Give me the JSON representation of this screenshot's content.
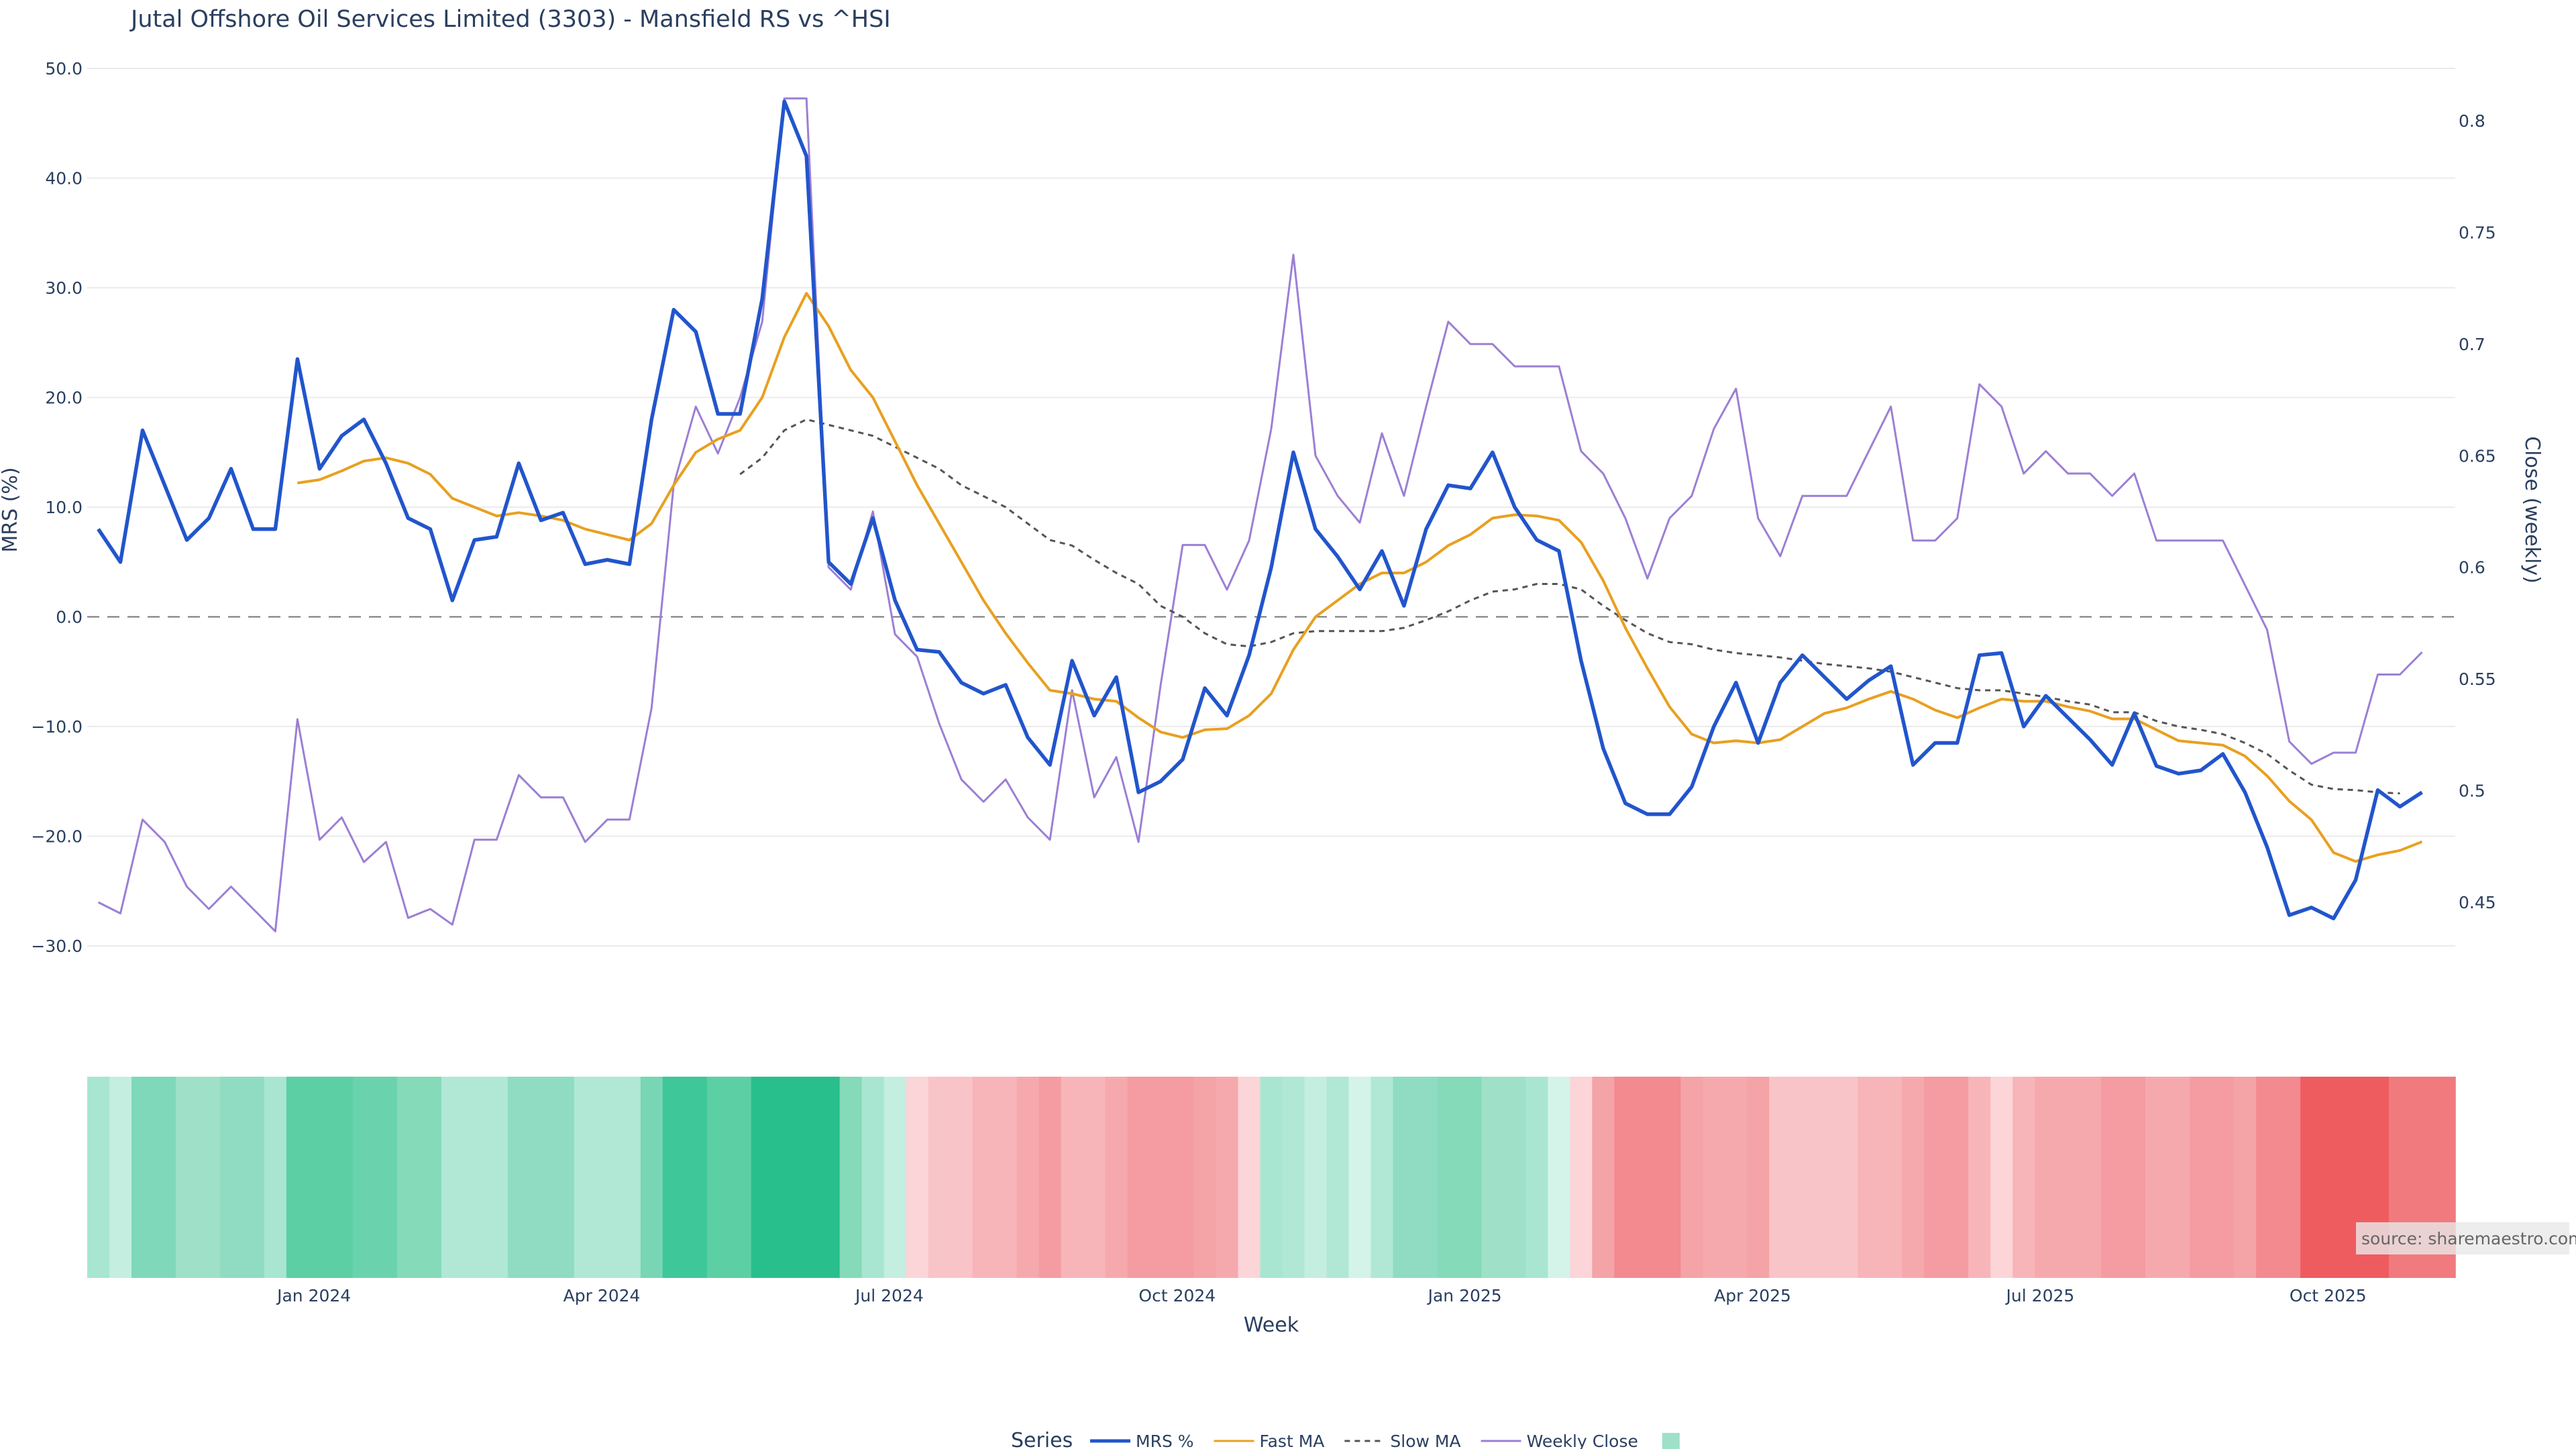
{
  "chart_data": {
    "type": "line",
    "title": "Jutal Offshore Oil Services Limited (3303) - Mansfield RS vs ^HSI",
    "xlabel": "Week",
    "ylabel": "MRS (%)",
    "y2label": "Close (weekly)",
    "ylim": [
      -30,
      50
    ],
    "y2lim": [
      0.43,
      0.82
    ],
    "yticks": [
      "50.0",
      "40.0",
      "30.0",
      "20.0",
      "10.0",
      "0.0",
      "−10.0",
      "−20.0",
      "−30.0"
    ],
    "yticks_values": [
      50,
      40,
      30,
      20,
      10,
      0,
      -10,
      -20,
      -30
    ],
    "y2ticks": [
      "0.8",
      "0.75",
      "0.7",
      "0.65",
      "0.6",
      "0.55",
      "0.5",
      "0.45"
    ],
    "y2ticks_values": [
      0.8,
      0.75,
      0.7,
      0.65,
      0.6,
      0.55,
      0.5,
      0.45
    ],
    "xticks": [
      "Jan 2024",
      "Apr 2024",
      "Jul 2024",
      "Oct 2024",
      "Jan 2025",
      "Apr 2025",
      "Jul 2025",
      "Oct 2025"
    ],
    "xticks_weeks": [
      9.75,
      22.75,
      35.75,
      48.75,
      61.75,
      74.75,
      87.75,
      100.75
    ],
    "x_count": 107,
    "grid": true,
    "legend_position": "bottom",
    "legend_title": "Series",
    "source": "source: sharemaestro.com",
    "series": [
      {
        "name": "MRS %",
        "color": "#2255cc",
        "values": [
          8,
          5,
          17,
          12,
          7,
          9,
          13.5,
          8,
          8,
          23.5,
          13.5,
          16.5,
          18,
          14,
          9,
          8,
          1.5,
          7,
          7.3,
          14,
          8.8,
          9.5,
          4.8,
          5.2,
          4.8,
          18,
          28,
          26,
          18.5,
          18.5,
          29,
          47,
          42,
          5,
          3,
          9,
          1.5,
          -3,
          -3.2,
          -6,
          -7,
          -6.2,
          -11,
          -13.5,
          -4,
          -9,
          -5.5,
          -16,
          -15,
          -13,
          -6.5,
          -9,
          -3.5,
          4.5,
          15,
          8,
          5.5,
          2.5,
          6,
          1,
          8,
          12,
          11.7,
          15,
          10,
          7,
          6,
          -4,
          -12,
          -17,
          -18,
          -18,
          -15.5,
          -10,
          -6,
          -11.5,
          -6,
          -3.5,
          -5.5,
          -7.5,
          -5.8,
          -4.5,
          -13.5,
          -11.5,
          -11.5,
          -3.5,
          -3.3,
          -10,
          -7.2,
          -9.2,
          -11.2,
          -13.5,
          -8.8,
          -13.6,
          -14.3,
          -14,
          -12.5,
          -16,
          -21,
          -27.2,
          -26.5,
          -27.5,
          -24,
          -15.8,
          -17.3,
          -16
        ]
      },
      {
        "name": "Fast MA",
        "color": "#e8a020",
        "values": [
          null,
          null,
          null,
          null,
          null,
          null,
          null,
          null,
          null,
          12.2,
          12.5,
          13.3,
          14.2,
          14.5,
          14,
          13,
          10.8,
          10,
          9.2,
          9.5,
          9.2,
          8.8,
          8,
          7.5,
          7,
          8.5,
          12,
          15,
          16.2,
          17,
          20,
          25.5,
          29.5,
          26.5,
          22.5,
          20,
          16,
          12,
          8.5,
          5,
          1.5,
          -1.5,
          -4.2,
          -6.7,
          -7,
          -7.5,
          -7.7,
          -9.2,
          -10.5,
          -11,
          -10.3,
          -10.2,
          -9,
          -7,
          -3,
          0,
          1.5,
          3,
          4,
          4,
          5,
          6.5,
          7.5,
          9,
          9.3,
          9.2,
          8.8,
          6.8,
          3.3,
          -1,
          -4.7,
          -8.2,
          -10.7,
          -11.5,
          -11.3,
          -11.5,
          -11.2,
          -10,
          -8.8,
          -8.3,
          -7.5,
          -6.8,
          -7.5,
          -8.5,
          -9.2,
          -8.3,
          -7.5,
          -7.7,
          -7.7,
          -8.2,
          -8.6,
          -9.3,
          -9.3,
          -10.3,
          -11.3,
          -11.5,
          -11.7,
          -12.7,
          -14.5,
          -16.8,
          -18.5,
          -21.5,
          -22.3,
          -21.7,
          -21.3,
          -20.5,
          null
        ]
      },
      {
        "name": "Slow MA",
        "color": "#555555",
        "dash": true,
        "values": [
          null,
          null,
          null,
          null,
          null,
          null,
          null,
          null,
          null,
          null,
          null,
          null,
          null,
          null,
          null,
          null,
          null,
          null,
          null,
          null,
          null,
          null,
          null,
          null,
          null,
          null,
          null,
          null,
          null,
          13,
          14.5,
          17,
          18,
          17.5,
          17,
          16.5,
          15.5,
          14.5,
          13.5,
          12,
          11,
          10,
          8.5,
          7,
          6.5,
          5.2,
          4,
          3,
          1,
          0,
          -1.5,
          -2.5,
          -2.7,
          -2.3,
          -1.5,
          -1.3,
          -1.3,
          -1.3,
          -1.3,
          -1,
          -0.3,
          0.5,
          1.5,
          2.3,
          2.5,
          3,
          3,
          2.5,
          1,
          -0.3,
          -1.5,
          -2.3,
          -2.5,
          -3,
          -3.3,
          -3.5,
          -3.7,
          -4,
          -4.3,
          -4.5,
          -4.7,
          -5,
          -5.5,
          -6,
          -6.5,
          -6.7,
          -6.7,
          -7,
          -7.3,
          -7.7,
          -8,
          -8.7,
          -8.7,
          -9.5,
          -10,
          -10.3,
          -10.7,
          -11.5,
          -12.5,
          -14,
          -15.3,
          -15.7,
          -15.8,
          -16,
          -16.1,
          null,
          null
        ]
      },
      {
        "name": "Weekly Close",
        "color": "#9c7fd4",
        "axis": "y2",
        "values": [
          0.45,
          0.445,
          0.487,
          0.477,
          0.457,
          0.447,
          0.457,
          0.447,
          0.437,
          0.532,
          0.478,
          0.488,
          0.468,
          0.477,
          0.443,
          0.447,
          0.44,
          0.478,
          0.478,
          0.507,
          0.497,
          0.497,
          0.477,
          0.487,
          0.487,
          0.537,
          0.637,
          0.672,
          0.651,
          0.676,
          0.71,
          0.81,
          0.81,
          0.6,
          0.59,
          0.625,
          0.57,
          0.56,
          0.53,
          0.505,
          0.495,
          0.505,
          0.488,
          0.478,
          0.545,
          0.497,
          0.515,
          0.477,
          0.547,
          0.61,
          0.61,
          0.59,
          0.612,
          0.662,
          0.74,
          0.65,
          0.632,
          0.62,
          0.66,
          0.632,
          0.672,
          0.71,
          0.7,
          0.7,
          0.69,
          0.69,
          0.69,
          0.652,
          0.642,
          0.622,
          0.595,
          0.622,
          0.632,
          0.662,
          0.68,
          0.622,
          0.605,
          0.632,
          0.632,
          0.632,
          0.652,
          0.672,
          0.612,
          0.612,
          0.622,
          0.682,
          0.672,
          0.642,
          0.652,
          0.642,
          0.642,
          0.632,
          0.642,
          0.612,
          0.612,
          0.612,
          0.612,
          0.592,
          0.572,
          0.522,
          0.512,
          0.517,
          0.517,
          0.552,
          0.552,
          0.562,
          null
        ]
      }
    ],
    "heatmap": {
      "name": "",
      "description_colors": "green for positive MRS, red for negative MRS",
      "colors": [
        "#a8e6d1",
        "#c4eedf",
        "#7fd8ba",
        "#7fd8ba",
        "#9ee0c8",
        "#9ee0c8",
        "#90dcc2",
        "#90dcc2",
        "#a8e6d1",
        "#5ccfa5",
        "#5ccfa5",
        "#5ccfa5",
        "#6ad3ae",
        "#6ad3ae",
        "#84dab9",
        "#84dab9",
        "#b0e8d5",
        "#b0e8d5",
        "#b0e8d5",
        "#90dcc2",
        "#90dcc2",
        "#90dcc2",
        "#b0e8d5",
        "#b0e8d5",
        "#b0e8d5",
        "#78d6b5",
        "#3ec798",
        "#3ec798",
        "#5ccfa5",
        "#5ccfa5",
        "#28bf8c",
        "#28bf8c",
        "#28bf8c",
        "#28bf8c",
        "#84dab9",
        "#a8e6d1",
        "#c4eedf",
        "#fbd5d7",
        "#f9c4c7",
        "#f9c4c7",
        "#f7b5b9",
        "#f7b5b9",
        "#f6a9ad",
        "#f49ca1",
        "#f7b5b9",
        "#f7b5b9",
        "#f6a9ad",
        "#f49ca1",
        "#f49ca1",
        "#f49ca1",
        "#f4a3a7",
        "#f6a9ad",
        "#fbd5d7",
        "#a8e6d1",
        "#b0e8d5",
        "#c4eedf",
        "#b0e8d5",
        "#d4f3e9",
        "#b0e8d5",
        "#90dcc2",
        "#90dcc2",
        "#84dab9",
        "#84dab9",
        "#9ee0c8",
        "#9ee0c8",
        "#a8e6d1",
        "#d4f3e9",
        "#fbd5d7",
        "#f4a3a7",
        "#f28a90",
        "#f28a90",
        "#f28a90",
        "#f4a3a7",
        "#f6a9ad",
        "#f6a9ad",
        "#f4a3a7",
        "#f9c4c7",
        "#f9c4c7",
        "#f9c4c7",
        "#f9c4c7",
        "#f7b5b9",
        "#f7b5b9",
        "#f6a9ad",
        "#f49ca1",
        "#f49ca1",
        "#f7b5b9",
        "#fbd5d7",
        "#f7b5b9",
        "#f6a9ad",
        "#f6a9ad",
        "#f6a9ad",
        "#f49ca1",
        "#f49ca1",
        "#f6a9ad",
        "#f6a9ad",
        "#f49ca1",
        "#f49ca1",
        "#f4a3a7",
        "#f28a90",
        "#f28a90",
        "#ee5c60",
        "#ee5c60",
        "#ee5c60",
        "#ee5c60",
        "#f07a7e",
        "#f07a7e",
        "#f07a7e"
      ]
    }
  }
}
